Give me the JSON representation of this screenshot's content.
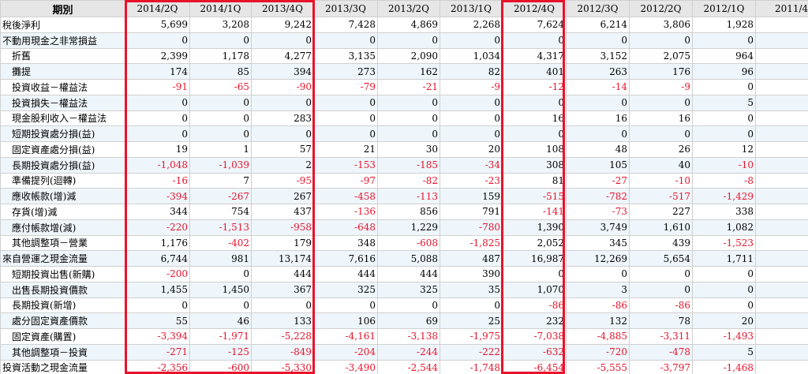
{
  "header": {
    "period_label": "期別",
    "columns": [
      "2014/2Q",
      "2014/1Q",
      "2013/4Q",
      "2013/3Q",
      "2013/2Q",
      "2013/1Q",
      "2012/4Q",
      "2012/3Q",
      "2012/2Q",
      "2012/1Q",
      "2011/4Q"
    ]
  },
  "rows": [
    {
      "label": "稅後淨利",
      "indent": false,
      "values": [
        "5,699",
        "3,208",
        "9,242",
        "7,428",
        "4,869",
        "2,268",
        "7,624",
        "6,214",
        "3,806",
        "1,928",
        "7,1"
      ]
    },
    {
      "label": "不動用現金之非常損益",
      "indent": false,
      "values": [
        "0",
        "0",
        "0",
        "0",
        "0",
        "0",
        "0",
        "0",
        "0",
        "0",
        "0"
      ]
    },
    {
      "label": "折舊",
      "indent": true,
      "values": [
        "2,399",
        "1,178",
        "4,277",
        "3,135",
        "2,090",
        "1,034",
        "4,317",
        "3,152",
        "2,075",
        "964",
        "4,1"
      ]
    },
    {
      "label": "攤提",
      "indent": true,
      "values": [
        "174",
        "85",
        "394",
        "273",
        "162",
        "82",
        "401",
        "263",
        "176",
        "96",
        "3"
      ]
    },
    {
      "label": "投資收益－權益法",
      "indent": true,
      "values": [
        "-91",
        "-65",
        "-90",
        "-79",
        "-21",
        "-9",
        "-12",
        "-14",
        "-9",
        "0",
        ""
      ]
    },
    {
      "label": "投資損失－權益法",
      "indent": true,
      "values": [
        "0",
        "0",
        "0",
        "0",
        "0",
        "0",
        "0",
        "0",
        "0",
        "5",
        ""
      ]
    },
    {
      "label": "現金股利收入－權益法",
      "indent": true,
      "values": [
        "0",
        "0",
        "283",
        "0",
        "0",
        "0",
        "16",
        "16",
        "16",
        "0",
        ""
      ]
    },
    {
      "label": "短期投資處分損(益)",
      "indent": true,
      "values": [
        "0",
        "0",
        "0",
        "0",
        "0",
        "0",
        "0",
        "0",
        "0",
        "0",
        ""
      ]
    },
    {
      "label": "固定資產處分損(益)",
      "indent": true,
      "values": [
        "19",
        "1",
        "57",
        "21",
        "30",
        "20",
        "108",
        "48",
        "26",
        "12",
        ""
      ]
    },
    {
      "label": "長期投資處分損(益)",
      "indent": true,
      "values": [
        "-1,048",
        "-1,039",
        "2",
        "-153",
        "-185",
        "-34",
        "308",
        "105",
        "40",
        "-10",
        "6"
      ]
    },
    {
      "label": "準備提列(迴轉)",
      "indent": true,
      "values": [
        "-16",
        "7",
        "-95",
        "-97",
        "-82",
        "-23",
        "81",
        "-27",
        "-10",
        "-8",
        ""
      ]
    },
    {
      "label": "應收帳款(增)減",
      "indent": true,
      "values": [
        "-394",
        "-267",
        "267",
        "-458",
        "-113",
        "159",
        "-515",
        "-782",
        "-517",
        "-1,429",
        "-8"
      ]
    },
    {
      "label": "存貨(增)減",
      "indent": true,
      "values": [
        "344",
        "754",
        "437",
        "-136",
        "856",
        "791",
        "-141",
        "-73",
        "227",
        "338",
        "-1,2"
      ]
    },
    {
      "label": "應付帳款增(減)",
      "indent": true,
      "values": [
        "-220",
        "-1,513",
        "-958",
        "-648",
        "1,229",
        "-780",
        "1,390",
        "3,749",
        "1,610",
        "1,082",
        "2,5"
      ]
    },
    {
      "label": "其他調整項－營業",
      "indent": true,
      "values": [
        "1,176",
        "-402",
        "179",
        "348",
        "-608",
        "-1,825",
        "2,052",
        "345",
        "439",
        "-1,523",
        "2,1"
      ]
    },
    {
      "label": "來自營運之現金流量",
      "indent": false,
      "values": [
        "6,744",
        "981",
        "13,174",
        "7,616",
        "5,088",
        "487",
        "16,987",
        "12,269",
        "5,654",
        "1,711",
        "18,2"
      ]
    },
    {
      "label": "短期投資出售(新購)",
      "indent": true,
      "values": [
        "-200",
        "0",
        "444",
        "444",
        "444",
        "390",
        "0",
        "0",
        "0",
        "0",
        ""
      ]
    },
    {
      "label": "出售長期投資價款",
      "indent": true,
      "values": [
        "1,455",
        "1,450",
        "367",
        "325",
        "325",
        "35",
        "1,070",
        "3",
        "0",
        "0",
        ""
      ]
    },
    {
      "label": "長期投資(新增)",
      "indent": true,
      "values": [
        "0",
        "0",
        "0",
        "0",
        "0",
        "0",
        "-86",
        "-86",
        "-86",
        "0",
        "-"
      ]
    },
    {
      "label": "處分固定資產價款",
      "indent": true,
      "values": [
        "55",
        "46",
        "133",
        "106",
        "69",
        "25",
        "232",
        "132",
        "78",
        "20",
        "2"
      ]
    },
    {
      "label": "固定資產(購置)",
      "indent": true,
      "values": [
        "-3,394",
        "-1,971",
        "-5,228",
        "-4,161",
        "-3,138",
        "-1,975",
        "-7,038",
        "-4,885",
        "-3,311",
        "-1,493",
        "-6,8"
      ]
    },
    {
      "label": "其他調整項－投資",
      "indent": true,
      "values": [
        "-271",
        "-125",
        "-849",
        "-204",
        "-244",
        "-222",
        "-632",
        "-720",
        "-478",
        "5",
        "-5"
      ]
    },
    {
      "label": "投資活動之現金流量",
      "indent": false,
      "values": [
        "-2,356",
        "-600",
        "-5,330",
        "-3,490",
        "-2,544",
        "-1,748",
        "-6,454",
        "-5,555",
        "-3,797",
        "-1,468",
        "-6,9"
      ]
    }
  ]
}
